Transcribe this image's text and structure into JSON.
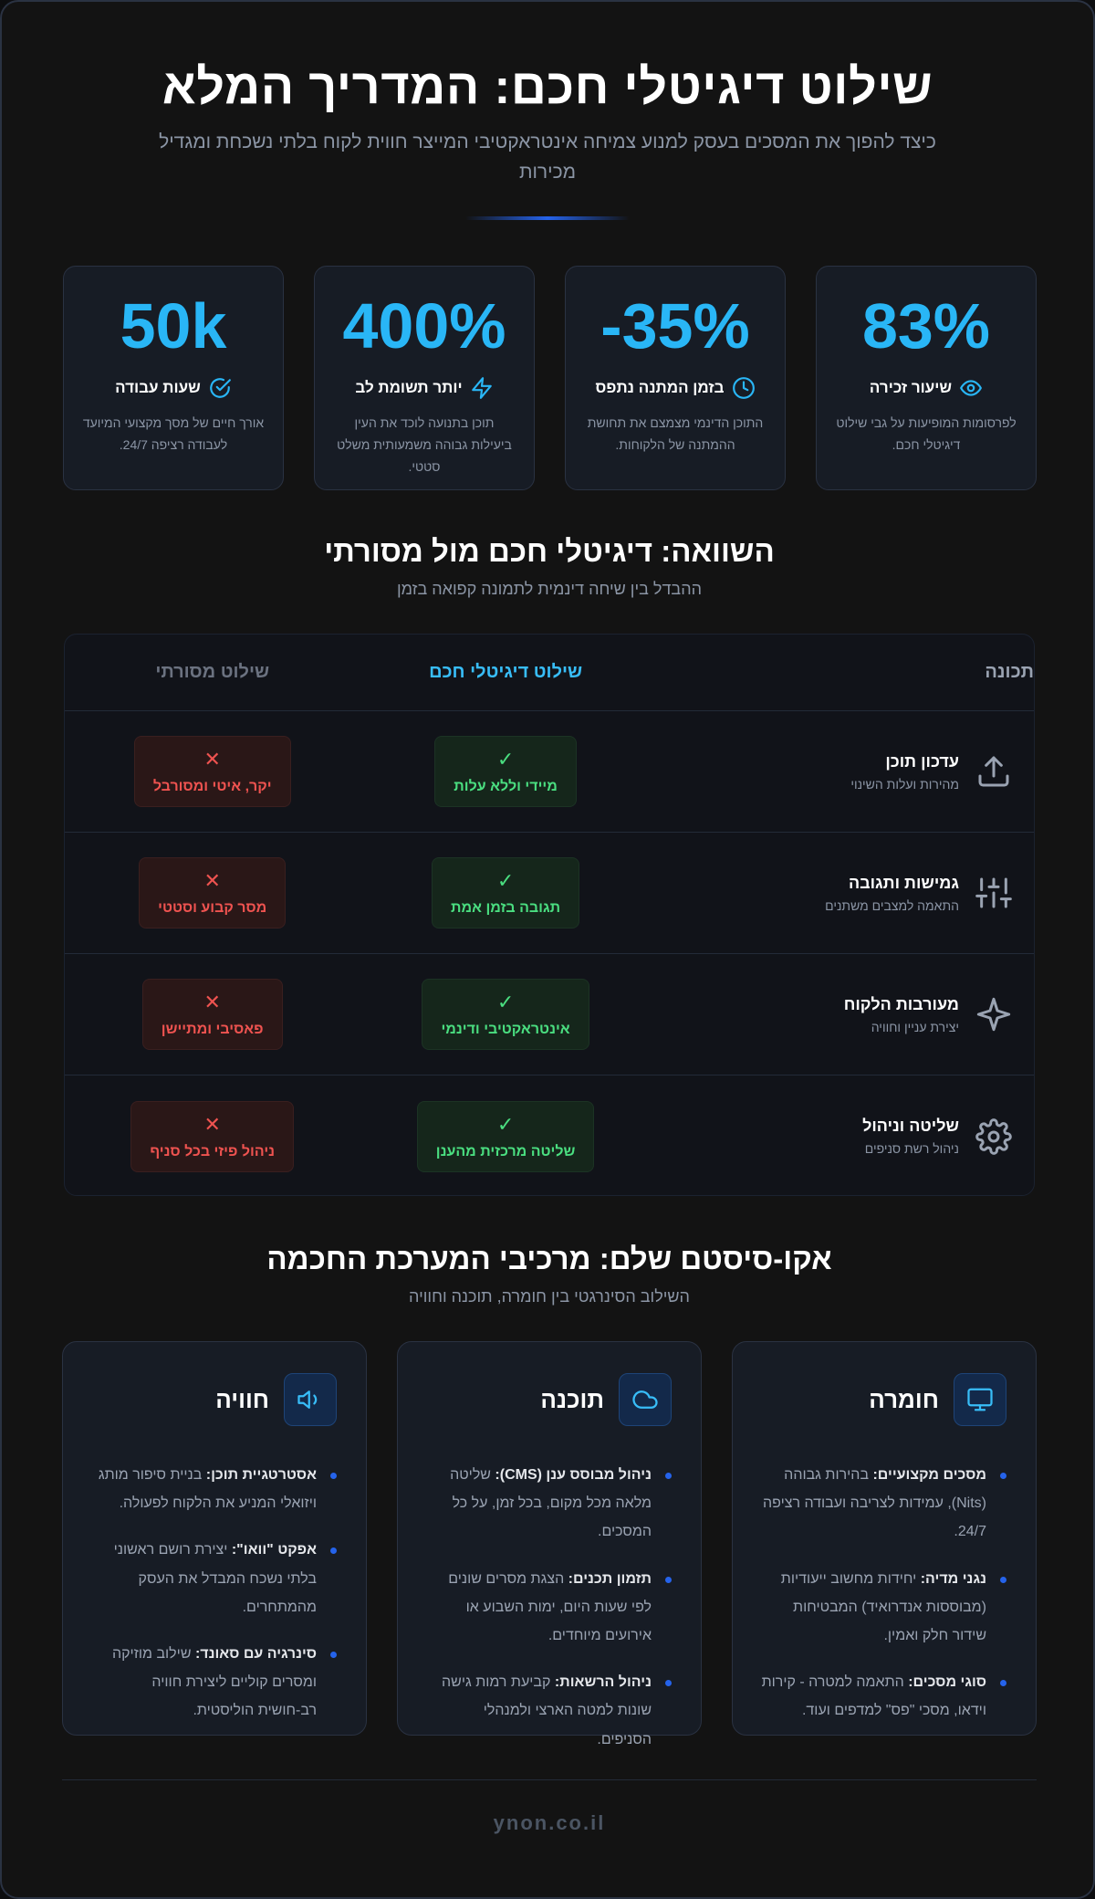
{
  "hero": {
    "title": "שילוט דיגיטלי חכם: המדריך המלא",
    "subtitle": "כיצד להפוך את המסכים בעסק למנוע צמיחה אינטראקטיבי המייצר חווית לקוח בלתי נשכחת ומגדיל מכירות"
  },
  "stats": [
    {
      "value": "83%",
      "label": "שיעור זכירה",
      "desc": "לפרסומות המופיעות על גבי שילוט דיגיטלי חכם.",
      "icon": "eye-icon"
    },
    {
      "value": "35%-",
      "label": "בזמן המתנה נתפס",
      "desc": "התוכן הדינמי מצמצם את תחושת ההמתנה של הלקוחות.",
      "icon": "clock-icon"
    },
    {
      "value": "400%",
      "label": "יותר תשומת לב",
      "desc": "תוכן בתנועה לוכד את העין ביעילות גבוהה משמעותית משלט סטטי.",
      "icon": "bolt-icon"
    },
    {
      "value": "50k",
      "label": "שעות עבודה",
      "desc": "אורך חיים של מסך מקצועי המיועד לעבודה רציפה 24/7.",
      "icon": "check-circle-icon"
    }
  ],
  "comparison": {
    "title": "השוואה: דיגיטלי חכם מול מסורתי",
    "subtitle": "ההבדל בין שיחה דינמית לתמונה קפואה בזמן",
    "headers": {
      "feature": "תכונה",
      "smart": "שילוט דיגיטלי חכם",
      "traditional": "שילוט מסורתי"
    },
    "good_mark": "✓",
    "bad_mark": "✕",
    "rows": [
      {
        "name": "עדכון תוכן",
        "desc": "מהירות ועלות השינוי",
        "smart": "מיידי וללא עלות",
        "traditional": "יקר, איטי ומסורבל",
        "icon": "upload-icon"
      },
      {
        "name": "גמישות ותגובה",
        "desc": "התאמה למצבים משתנים",
        "smart": "תגובה בזמן אמת",
        "traditional": "מסר קבוע וסטטי",
        "icon": "sliders-icon"
      },
      {
        "name": "מעורבות הלקוח",
        "desc": "יצירת עניין וחוויה",
        "smart": "אינטראקטיבי ודינמי",
        "traditional": "פאסיבי ומתיישן",
        "icon": "sparkle-icon"
      },
      {
        "name": "שליטה וניהול",
        "desc": "ניהול רשת סניפים",
        "smart": "שליטה מרכזית מהענן",
        "traditional": "ניהול פיזי בכל סניף",
        "icon": "gear-icon"
      }
    ]
  },
  "ecosystem": {
    "title": "אקו-סיסטם שלם: מרכיבי המערכת החכמה",
    "subtitle": "השילוב הסינרגטי בין חומרה, תוכנה וחוויה",
    "cards": [
      {
        "title": "חומרה",
        "icon": "monitor-icon",
        "items": [
          {
            "bold": "מסכים מקצועיים:",
            "text": " בהירות גבוהה (Nits), עמידות לצריבה ועבודה רציפה 24/7."
          },
          {
            "bold": "נגני מדיה:",
            "text": " יחידות מחשוב ייעודיות (מבוססות אנדרואיד) המבטיחות שידור חלק ואמין."
          },
          {
            "bold": "סוגי מסכים:",
            "text": " התאמה למטרה - קירות וידאו, מסכי \"פס\" למדפים ועוד."
          }
        ]
      },
      {
        "title": "תוכנה",
        "icon": "cloud-icon",
        "items": [
          {
            "bold": "ניהול מבוסס ענן (CMS):",
            "text": " שליטה מלאה מכל מקום, בכל זמן, על כל המסכים."
          },
          {
            "bold": "תזמון תכנים:",
            "text": " הצגת מסרים שונים לפי שעות היום, ימות השבוע או אירועים מיוחדים."
          },
          {
            "bold": "ניהול הרשאות:",
            "text": " קביעת רמות גישה שונות למטה הארצי ולמנהלי הסניפים."
          }
        ]
      },
      {
        "title": "חוויה",
        "icon": "speaker-icon",
        "items": [
          {
            "bold": "אסטרטגיית תוכן:",
            "text": " בניית סיפור מותג ויזואלי המניע את הלקוח לפעולה."
          },
          {
            "bold": "אפקט \"וואו\":",
            "text": " יצירת רושם ראשוני בלתי נשכח המבדל את העסק מהמתחרים."
          },
          {
            "bold": "סינרגיה עם סאונד:",
            "text": " שילוב מוזיקה ומסרים קוליים ליצירת חוויה רב-חושית הוליסטית."
          }
        ]
      }
    ]
  },
  "footer": {
    "site": "ynon.co.il"
  },
  "colors": {
    "accent": "#29b6f6",
    "good": "#4ade80",
    "bad": "#ef5350",
    "bullet": "#2563eb"
  }
}
